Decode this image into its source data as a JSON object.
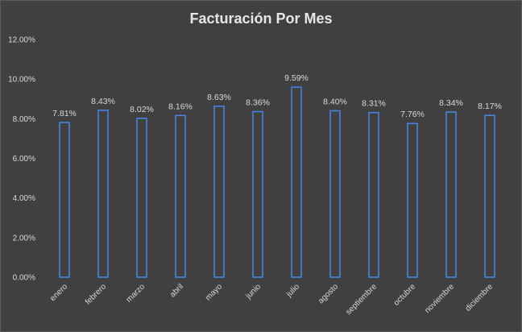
{
  "chart_data": {
    "type": "bar",
    "title": "Facturación Por Mes",
    "categories": [
      "enero",
      "febrero",
      "marzo",
      "abril",
      "mayo",
      "junio",
      "julio",
      "agosto",
      "septiembre",
      "octubre",
      "noviembre",
      "diciembre"
    ],
    "values": [
      7.81,
      8.43,
      8.02,
      8.16,
      8.63,
      8.36,
      9.59,
      8.4,
      8.31,
      7.76,
      8.34,
      8.17
    ],
    "data_labels": [
      "7.81%",
      "8.43%",
      "8.02%",
      "8.16%",
      "8.63%",
      "8.36%",
      "9.59%",
      "8.40%",
      "8.31%",
      "7.76%",
      "8.34%",
      "8.17%"
    ],
    "yticks": [
      "0.00%",
      "2.00%",
      "4.00%",
      "6.00%",
      "8.00%",
      "10.00%",
      "12.00%"
    ],
    "ylim": [
      0,
      12
    ],
    "xlabel": "",
    "ylabel": "",
    "grid": false,
    "legend": false,
    "colors": {
      "background": "#404040",
      "bar_stroke": "#4a86e8",
      "bar_fill": "#404040",
      "text": "#d9d9d9"
    }
  }
}
